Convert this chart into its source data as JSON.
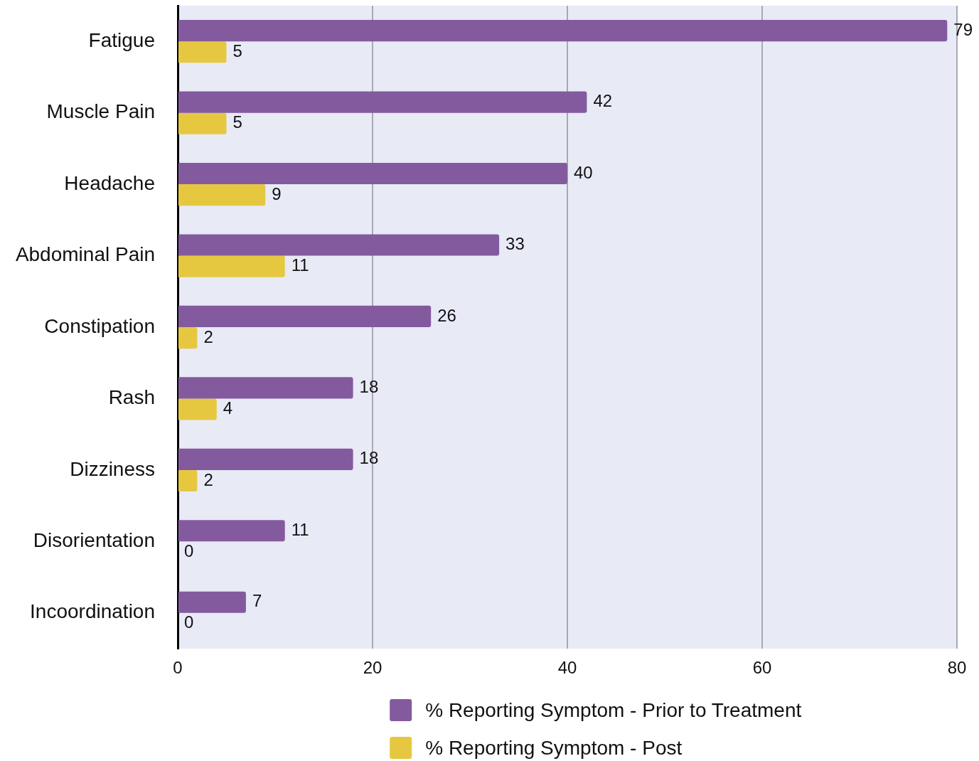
{
  "chart_data": {
    "type": "bar",
    "orientation": "horizontal",
    "categories": [
      "Fatigue",
      "Muscle Pain",
      "Headache",
      "Abdominal Pain",
      "Constipation",
      "Rash",
      "Dizziness",
      "Disorientation",
      "Incoordination"
    ],
    "series": [
      {
        "name": "% Reporting Symptom - Prior to Treatment",
        "color": "#845a9e",
        "values": [
          79,
          42,
          40,
          33,
          26,
          18,
          18,
          11,
          7
        ]
      },
      {
        "name": "% Reporting Symptom - Post",
        "color": "#e6c840",
        "values": [
          5,
          5,
          9,
          11,
          2,
          4,
          2,
          0,
          0
        ]
      }
    ],
    "xlim": [
      0,
      80
    ],
    "xticks": [
      0,
      20,
      40,
      60,
      80
    ],
    "grid": "x",
    "legend": "bottom",
    "data_labels": true
  }
}
